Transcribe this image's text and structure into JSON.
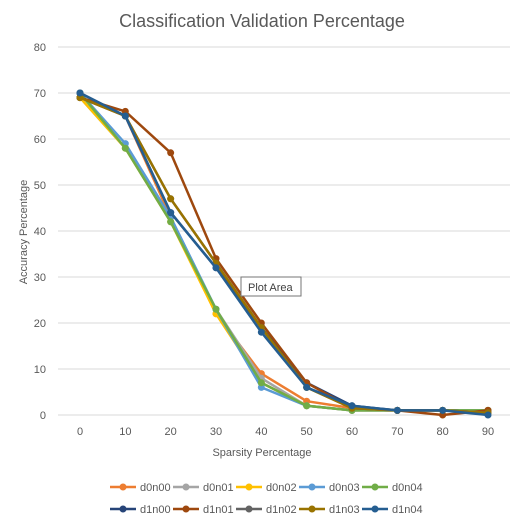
{
  "chart_data": {
    "type": "line",
    "title": "Classification Validation Percentage",
    "xlabel": "Sparsity Percentage",
    "ylabel": "Accuracy Percentage",
    "x": [
      0,
      10,
      20,
      30,
      40,
      50,
      60,
      70,
      80,
      90
    ],
    "xlim": [
      0,
      90
    ],
    "ylim": [
      0,
      80
    ],
    "yticks": [
      0,
      10,
      20,
      30,
      40,
      50,
      60,
      70,
      80
    ],
    "grid": true,
    "legend_position": "bottom",
    "series": [
      {
        "name": "d0n00",
        "color": "#ED7D31",
        "values": [
          69,
          65,
          43,
          22,
          9,
          3,
          1.5,
          1,
          1,
          1
        ]
      },
      {
        "name": "d0n01",
        "color": "#A5A5A5",
        "values": [
          69,
          58,
          42,
          23,
          8,
          2,
          1,
          1,
          1,
          1
        ]
      },
      {
        "name": "d0n02",
        "color": "#FFC000",
        "values": [
          69,
          58,
          42,
          22,
          7,
          2,
          1,
          1,
          1,
          1
        ]
      },
      {
        "name": "d0n03",
        "color": "#5B9BD5",
        "values": [
          70,
          59,
          43,
          23,
          6,
          2,
          1,
          1,
          1,
          1
        ]
      },
      {
        "name": "d0n04",
        "color": "#70AD47",
        "values": [
          70,
          58,
          42,
          23,
          7,
          2,
          1,
          1,
          1,
          1
        ]
      },
      {
        "name": "d1n00",
        "color": "#264478",
        "values": [
          70,
          65,
          44,
          32,
          19,
          7,
          2,
          1,
          1,
          0.5
        ]
      },
      {
        "name": "d1n01",
        "color": "#9E480E",
        "values": [
          69,
          66,
          57,
          34,
          20,
          7,
          1.5,
          1,
          0,
          1
        ]
      },
      {
        "name": "d1n02",
        "color": "#636363",
        "values": [
          69,
          65,
          47,
          33,
          19,
          6,
          1.5,
          1,
          1,
          0.5
        ]
      },
      {
        "name": "d1n03",
        "color": "#997300",
        "values": [
          69,
          65,
          47,
          33,
          19,
          6,
          1.5,
          1,
          1,
          0.5
        ]
      },
      {
        "name": "d1n04",
        "color": "#255E91",
        "values": [
          70,
          65,
          44,
          32,
          18,
          6,
          2,
          1,
          1,
          0
        ]
      }
    ],
    "annotations": [
      {
        "text": "Plot Area"
      }
    ]
  }
}
